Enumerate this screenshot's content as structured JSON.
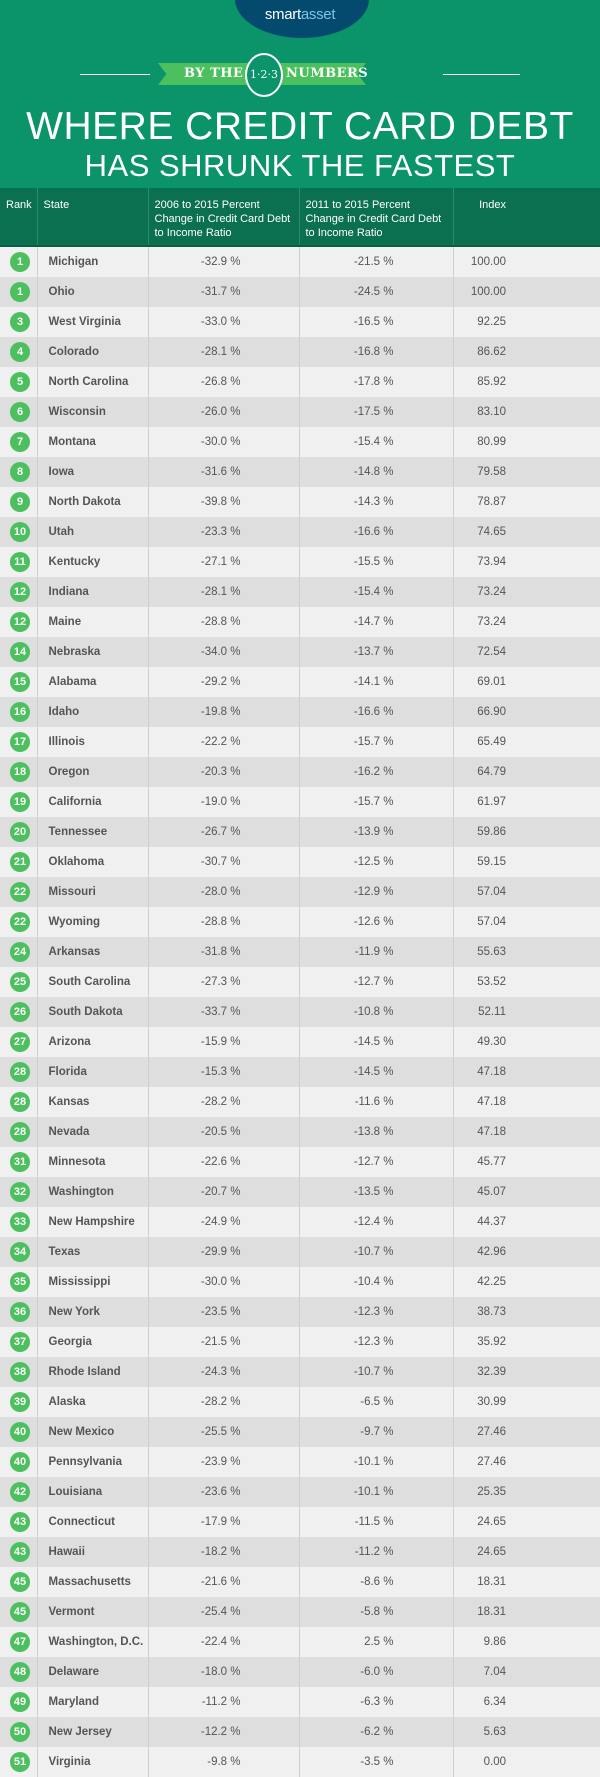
{
  "brand": {
    "logo_part1": "smart",
    "logo_part2": "asset",
    "logo_color": "#034a6e"
  },
  "banner": {
    "left": "BY THE",
    "center": "1·2·3",
    "right": "NUMBERS",
    "color": "#4cc05e"
  },
  "title": {
    "line1": "WHERE CREDIT CARD DEBT",
    "line2": "HAS SHRUNK THE FASTEST"
  },
  "colors": {
    "background": "#0b936a",
    "header": "#0a7050",
    "rank_badge": "#4cc05e"
  },
  "table": {
    "headers": [
      "Rank",
      "State",
      "2006 to 2015 Percent Change in Credit Card Debt to Income Ratio",
      "2011 to 2015 Percent Change in Credit Card Debt to Income Ratio",
      "Index"
    ],
    "rows": [
      [
        "1",
        "Michigan",
        "-32.9 %",
        "-21.5 %",
        "100.00"
      ],
      [
        "1",
        "Ohio",
        "-31.7 %",
        "-24.5 %",
        "100.00"
      ],
      [
        "3",
        "West Virginia",
        "-33.0 %",
        "-16.5 %",
        "92.25"
      ],
      [
        "4",
        "Colorado",
        "-28.1 %",
        "-16.8 %",
        "86.62"
      ],
      [
        "5",
        "North Carolina",
        "-26.8 %",
        "-17.8 %",
        "85.92"
      ],
      [
        "6",
        "Wisconsin",
        "-26.0 %",
        "-17.5 %",
        "83.10"
      ],
      [
        "7",
        "Montana",
        "-30.0 %",
        "-15.4 %",
        "80.99"
      ],
      [
        "8",
        "Iowa",
        "-31.6 %",
        "-14.8 %",
        "79.58"
      ],
      [
        "9",
        "North Dakota",
        "-39.8 %",
        "-14.3 %",
        "78.87"
      ],
      [
        "10",
        "Utah",
        "-23.3 %",
        "-16.6 %",
        "74.65"
      ],
      [
        "11",
        "Kentucky",
        "-27.1 %",
        "-15.5 %",
        "73.94"
      ],
      [
        "12",
        "Indiana",
        "-28.1 %",
        "-15.4 %",
        "73.24"
      ],
      [
        "12",
        "Maine",
        "-28.8 %",
        "-14.7 %",
        "73.24"
      ],
      [
        "14",
        "Nebraska",
        "-34.0 %",
        "-13.7 %",
        "72.54"
      ],
      [
        "15",
        "Alabama",
        "-29.2 %",
        "-14.1 %",
        "69.01"
      ],
      [
        "16",
        "Idaho",
        "-19.8 %",
        "-16.6 %",
        "66.90"
      ],
      [
        "17",
        "Illinois",
        "-22.2 %",
        "-15.7 %",
        "65.49"
      ],
      [
        "18",
        "Oregon",
        "-20.3 %",
        "-16.2 %",
        "64.79"
      ],
      [
        "19",
        "California",
        "-19.0 %",
        "-15.7 %",
        "61.97"
      ],
      [
        "20",
        "Tennessee",
        "-26.7 %",
        "-13.9 %",
        "59.86"
      ],
      [
        "21",
        "Oklahoma",
        "-30.7 %",
        "-12.5 %",
        "59.15"
      ],
      [
        "22",
        "Missouri",
        "-28.0 %",
        "-12.9 %",
        "57.04"
      ],
      [
        "22",
        "Wyoming",
        "-28.8 %",
        "-12.6 %",
        "57.04"
      ],
      [
        "24",
        "Arkansas",
        "-31.8 %",
        "-11.9 %",
        "55.63"
      ],
      [
        "25",
        "South Carolina",
        "-27.3 %",
        "-12.7 %",
        "53.52"
      ],
      [
        "26",
        "South Dakota",
        "-33.7 %",
        "-10.8 %",
        "52.11"
      ],
      [
        "27",
        "Arizona",
        "-15.9 %",
        "-14.5 %",
        "49.30"
      ],
      [
        "28",
        "Florida",
        "-15.3 %",
        "-14.5 %",
        "47.18"
      ],
      [
        "28",
        "Kansas",
        "-28.2 %",
        "-11.6 %",
        "47.18"
      ],
      [
        "28",
        "Nevada",
        "-20.5 %",
        "-13.8 %",
        "47.18"
      ],
      [
        "31",
        "Minnesota",
        "-22.6 %",
        "-12.7 %",
        "45.77"
      ],
      [
        "32",
        "Washington",
        "-20.7 %",
        "-13.5 %",
        "45.07"
      ],
      [
        "33",
        "New Hampshire",
        "-24.9 %",
        "-12.4 %",
        "44.37"
      ],
      [
        "34",
        "Texas",
        "-29.9 %",
        "-10.7 %",
        "42.96"
      ],
      [
        "35",
        "Mississippi",
        "-30.0 %",
        "-10.4 %",
        "42.25"
      ],
      [
        "36",
        "New York",
        "-23.5 %",
        "-12.3 %",
        "38.73"
      ],
      [
        "37",
        "Georgia",
        "-21.5 %",
        "-12.3 %",
        "35.92"
      ],
      [
        "38",
        "Rhode Island",
        "-24.3 %",
        "-10.7 %",
        "32.39"
      ],
      [
        "39",
        "Alaska",
        "-28.2 %",
        "-6.5 %",
        "30.99"
      ],
      [
        "40",
        "New Mexico",
        "-25.5 %",
        "-9.7 %",
        "27.46"
      ],
      [
        "40",
        "Pennsylvania",
        "-23.9 %",
        "-10.1 %",
        "27.46"
      ],
      [
        "42",
        "Louisiana",
        "-23.6 %",
        "-10.1 %",
        "25.35"
      ],
      [
        "43",
        "Connecticut",
        "-17.9 %",
        "-11.5 %",
        "24.65"
      ],
      [
        "43",
        "Hawaii",
        "-18.2 %",
        "-11.2 %",
        "24.65"
      ],
      [
        "45",
        "Massachusetts",
        "-21.6 %",
        "-8.6 %",
        "18.31"
      ],
      [
        "45",
        "Vermont",
        "-25.4 %",
        "-5.8 %",
        "18.31"
      ],
      [
        "47",
        "Washington, D.C.",
        "-22.4 %",
        "2.5 %",
        "9.86"
      ],
      [
        "48",
        "Delaware",
        "-18.0 %",
        "-6.0 %",
        "7.04"
      ],
      [
        "49",
        "Maryland",
        "-11.2 %",
        "-6.3 %",
        "6.34"
      ],
      [
        "50",
        "New Jersey",
        "-12.2 %",
        "-6.2 %",
        "5.63"
      ],
      [
        "51",
        "Virginia",
        "-9.8 %",
        "-3.5 %",
        "0.00"
      ]
    ]
  }
}
